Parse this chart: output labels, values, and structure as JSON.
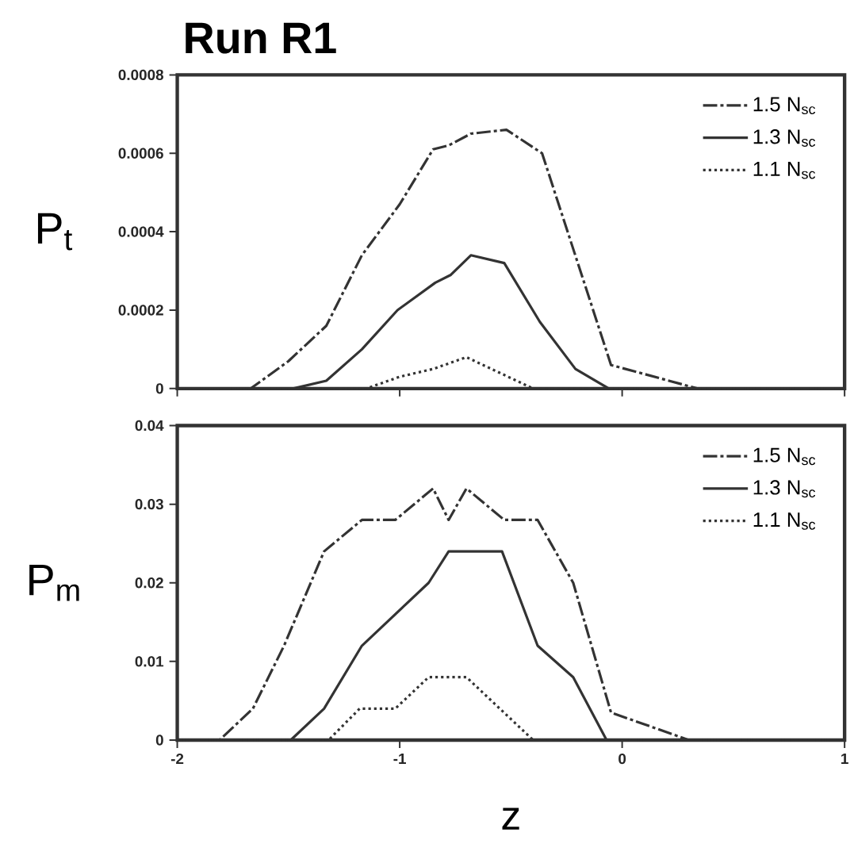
{
  "chart_data": [
    {
      "type": "line",
      "title": "Run R1",
      "ylabel": "P$_{t}$",
      "xlim": [
        -2,
        1
      ],
      "xticks": [
        -2,
        -1,
        0,
        1
      ],
      "ylim": [
        0,
        0.0008
      ],
      "yticks": [
        0,
        0.0002,
        0.0004,
        0.0006,
        0.0008
      ],
      "tick_labels": "y",
      "legend": "top right",
      "grid": false,
      "series": [
        {
          "name": "1.5 N$_{sc}$",
          "color": "#333333",
          "line_style": "dashdot",
          "x": [
            -2,
            -1.78,
            -1.67,
            -1.5,
            -1.33,
            -1.17,
            -1.0,
            -0.85,
            -0.78,
            -0.68,
            -0.52,
            -0.36,
            -0.05,
            0.34,
            1
          ],
          "values": [
            0,
            0,
            0,
            7e-05,
            0.00016,
            0.00034,
            0.00047,
            0.00061,
            0.00062,
            0.00065,
            0.00066,
            0.0006,
            6e-05,
            0,
            0
          ]
        },
        {
          "name": "1.3 N$_{sc}$",
          "color": "#333333",
          "line_style": "solid",
          "x": [
            -2,
            -1.48,
            -1.33,
            -1.17,
            -1.01,
            -0.84,
            -0.77,
            -0.68,
            -0.53,
            -0.37,
            -0.21,
            -0.06,
            1
          ],
          "values": [
            0,
            0,
            2e-05,
            0.0001,
            0.0002,
            0.00027,
            0.00029,
            0.00034,
            0.00032,
            0.00017,
            5e-05,
            0,
            0
          ]
        },
        {
          "name": "1.1 N$_{sc}$",
          "color": "#333333",
          "line_style": "dotted",
          "x": [
            -2,
            -1.15,
            -1.0,
            -0.85,
            -0.7,
            -0.55,
            -0.4,
            1
          ],
          "values": [
            0,
            0,
            3e-05,
            5e-05,
            8e-05,
            4e-05,
            0,
            0
          ]
        }
      ]
    },
    {
      "type": "line",
      "xlabel": "z",
      "ylabel": "P$_{m}$",
      "xlim": [
        -2,
        1
      ],
      "xticks": [
        -2,
        -1,
        0,
        1
      ],
      "ylim": [
        0,
        0.04
      ],
      "yticks": [
        0,
        0.01,
        0.02,
        0.03,
        0.04
      ],
      "legend": "top right",
      "grid": false,
      "series": [
        {
          "name": "1.5 N$_{sc}$",
          "color": "#333333",
          "line_style": "dashdot",
          "x": [
            -2,
            -1.81,
            -1.66,
            -1.52,
            -1.34,
            -1.17,
            -1.02,
            -0.85,
            -0.78,
            -0.7,
            -0.53,
            -0.38,
            -0.22,
            -0.05,
            0.3,
            1
          ],
          "values": [
            0,
            0,
            0.004,
            0.012,
            0.024,
            0.028,
            0.028,
            0.032,
            0.028,
            0.032,
            0.028,
            0.028,
            0.02,
            0.0035,
            0,
            0
          ]
        },
        {
          "name": "1.3 N$_{sc}$",
          "color": "#333333",
          "line_style": "solid",
          "x": [
            -2,
            -1.49,
            -1.34,
            -1.17,
            -0.87,
            -0.78,
            -0.54,
            -0.38,
            -0.22,
            -0.07,
            1
          ],
          "values": [
            0,
            0,
            0.004,
            0.012,
            0.02,
            0.024,
            0.024,
            0.012,
            0.008,
            0,
            0
          ]
        },
        {
          "name": "1.1 N$_{sc}$",
          "color": "#333333",
          "line_style": "dotted",
          "x": [
            -2,
            -1.32,
            -1.18,
            -1.02,
            -0.87,
            -0.7,
            -0.4,
            1
          ],
          "values": [
            0,
            0,
            0.004,
            0.004,
            0.008,
            0.008,
            0,
            0
          ]
        }
      ]
    }
  ]
}
